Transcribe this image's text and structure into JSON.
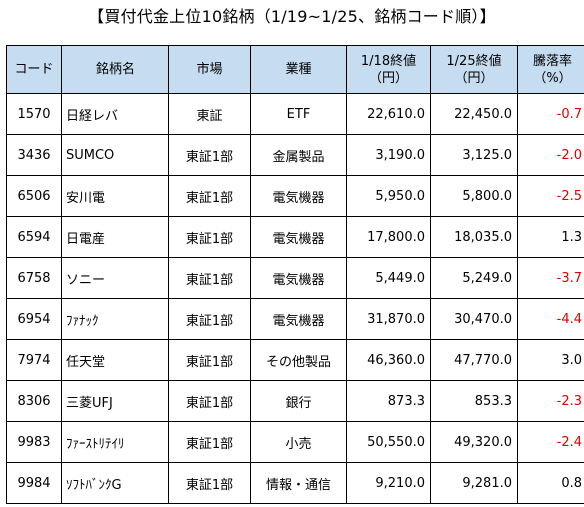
{
  "title": "【買付代金上位10銘柄（1/19~1/25、銘柄コード順）】",
  "headers": {
    "code": "コード",
    "name": "銘柄名",
    "market": "市場",
    "industry": "業種",
    "price1_line1": "1/18終値",
    "price1_line2": "（円）",
    "price2_line1": "1/25終値",
    "price2_line2": "（円）",
    "change_line1": "騰落率",
    "change_line2": "（%）"
  },
  "colors": {
    "header_bg": "#c6dcf0",
    "negative": "#e00000",
    "positive": "#000000"
  },
  "rows": [
    {
      "code": "1570",
      "name": "日経レバ",
      "market": "東証",
      "industry": "ETF",
      "price1": "22,610.0",
      "price2": "22,450.0",
      "change": "-0.7",
      "negative": true
    },
    {
      "code": "3436",
      "name": "SUMCO",
      "market": "東証1部",
      "industry": "金属製品",
      "price1": "3,190.0",
      "price2": "3,125.0",
      "change": "-2.0",
      "negative": true
    },
    {
      "code": "6506",
      "name": "安川電",
      "market": "東証1部",
      "industry": "電気機器",
      "price1": "5,950.0",
      "price2": "5,800.0",
      "change": "-2.5",
      "negative": true
    },
    {
      "code": "6594",
      "name": "日電産",
      "market": "東証1部",
      "industry": "電気機器",
      "price1": "17,800.0",
      "price2": "18,035.0",
      "change": "1.3",
      "negative": false
    },
    {
      "code": "6758",
      "name": "ソニー",
      "market": "東証1部",
      "industry": "電気機器",
      "price1": "5,449.0",
      "price2": "5,249.0",
      "change": "-3.7",
      "negative": true
    },
    {
      "code": "6954",
      "name": "ﾌｧﾅｯｸ",
      "market": "東証1部",
      "industry": "電気機器",
      "price1": "31,870.0",
      "price2": "30,470.0",
      "change": "-4.4",
      "negative": true
    },
    {
      "code": "7974",
      "name": "任天堂",
      "market": "東証1部",
      "industry": "その他製品",
      "price1": "46,360.0",
      "price2": "47,770.0",
      "change": "3.0",
      "negative": false
    },
    {
      "code": "8306",
      "name": "三菱UFJ",
      "market": "東証1部",
      "industry": "銀行",
      "price1": "873.3",
      "price2": "853.3",
      "change": "-2.3",
      "negative": true
    },
    {
      "code": "9983",
      "name": "ﾌｧｰｽﾄﾘﾃｲﾘ",
      "market": "東証1部",
      "industry": "小売",
      "price1": "50,550.0",
      "price2": "49,320.0",
      "change": "-2.4",
      "negative": true
    },
    {
      "code": "9984",
      "name": "ｿﾌﾄﾊﾞﾝｸG",
      "market": "東証1部",
      "industry": "情報・通信",
      "price1": "9,210.0",
      "price2": "9,281.0",
      "change": "0.8",
      "negative": false
    }
  ]
}
